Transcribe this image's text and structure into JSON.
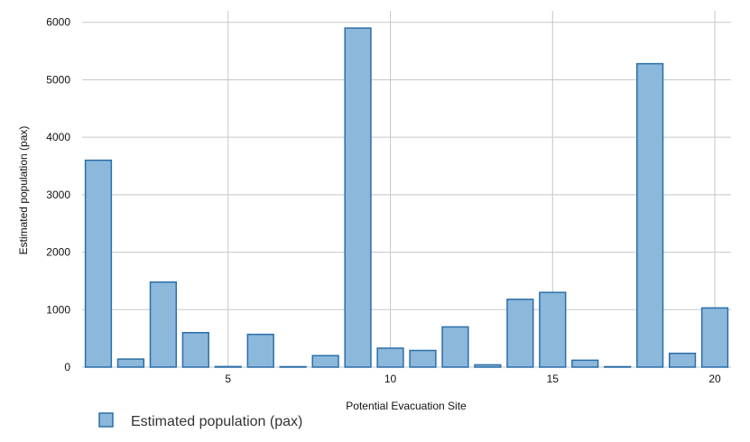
{
  "chart_data": {
    "type": "bar",
    "x": [
      1,
      2,
      3,
      4,
      5,
      6,
      7,
      8,
      9,
      10,
      11,
      12,
      13,
      14,
      15,
      16,
      17,
      18,
      19,
      20
    ],
    "x_ticks": [
      "5",
      "10",
      "15",
      "20"
    ],
    "x_tick_values": [
      5,
      10,
      15,
      20
    ],
    "y_ticks": [
      "0",
      "1000",
      "2000",
      "3000",
      "4000",
      "5000",
      "6000"
    ],
    "series": [
      {
        "name": "Estimated population (pax)",
        "values": [
          3600,
          140,
          1480,
          600,
          10,
          570,
          5,
          200,
          5900,
          330,
          290,
          700,
          40,
          1180,
          1300,
          120,
          5,
          5280,
          240,
          1030
        ]
      }
    ],
    "xlabel": "Potential Evacuation Site",
    "ylabel": "Estimated population (pax)",
    "ylim": [
      0,
      6200
    ],
    "xlim": [
      0.5,
      20.5
    ],
    "grid": true,
    "legend": "bottom-left",
    "colors": {
      "bar_fill": "#8cb8dc",
      "bar_stroke": "#2b6ea8",
      "grid": "#c8c8c8"
    }
  }
}
